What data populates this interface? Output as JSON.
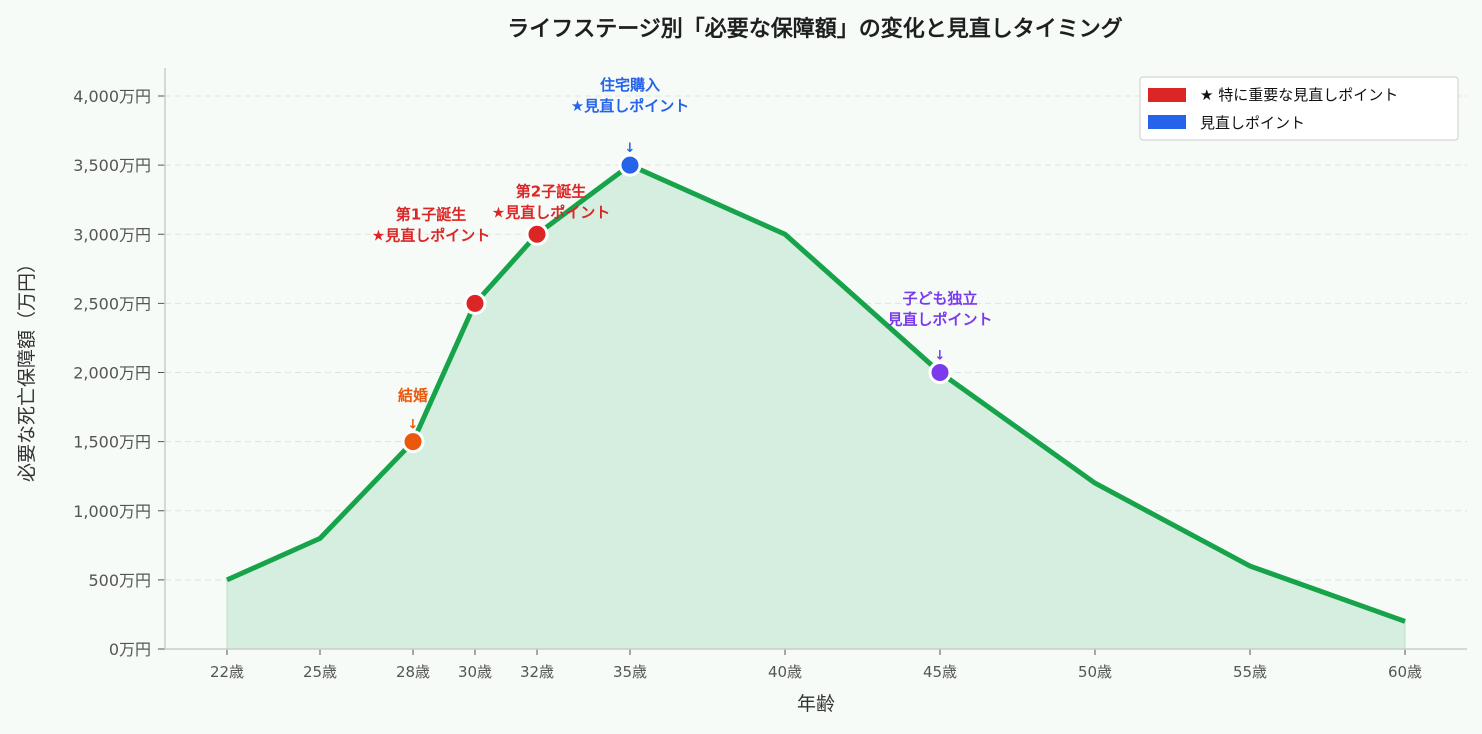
{
  "chart_data": {
    "type": "area",
    "title": "ライフステージ別「必要な保障額」の変化と見直しタイミング",
    "xlabel": "年齢",
    "ylabel": "必要な死亡保障額（万円）",
    "x": [
      22,
      25,
      28,
      30,
      32,
      35,
      40,
      45,
      50,
      55,
      60
    ],
    "x_tick_labels": [
      "22歳",
      "25歳",
      "28歳",
      "30歳",
      "32歳",
      "35歳",
      "40歳",
      "45歳",
      "50歳",
      "55歳",
      "60歳"
    ],
    "values": [
      500,
      800,
      1500,
      2500,
      3000,
      3500,
      3000,
      2000,
      1200,
      600,
      200
    ],
    "ylim": [
      0,
      4200
    ],
    "y_ticks": [
      0,
      500,
      1000,
      1500,
      2000,
      2500,
      3000,
      3500,
      4000
    ],
    "y_tick_labels": [
      "0万円",
      "500万円",
      "1,000万円",
      "1,500万円",
      "2,000万円",
      "2,500万円",
      "3,000万円",
      "3,500万円",
      "4,000万円"
    ],
    "grid": "horizontal dashed",
    "line_color": "#16a34a",
    "fill_color": "#d6eedf",
    "legend_position": "top-right",
    "legend": [
      {
        "label": "★ 特に重要な見直しポイント",
        "color": "#dc2626"
      },
      {
        "label": "見直しポイント",
        "color": "#2563eb"
      }
    ],
    "annotations": [
      {
        "x": 28,
        "y": 1500,
        "lines": [
          "結婚"
        ],
        "color": "#ea580c"
      },
      {
        "x": 30,
        "y": 2500,
        "lines": [
          "第1子誕生",
          "★見直しポイント"
        ],
        "color": "#dc2626"
      },
      {
        "x": 32,
        "y": 3000,
        "lines": [
          "第2子誕生",
          "★見直しポイント"
        ],
        "color": "#dc2626"
      },
      {
        "x": 35,
        "y": 3500,
        "lines": [
          "住宅購入",
          "★見直しポイント"
        ],
        "color": "#2563eb"
      },
      {
        "x": 45,
        "y": 2000,
        "lines": [
          "子ども独立",
          "見直しポイント"
        ],
        "color": "#7c3aed"
      }
    ]
  }
}
